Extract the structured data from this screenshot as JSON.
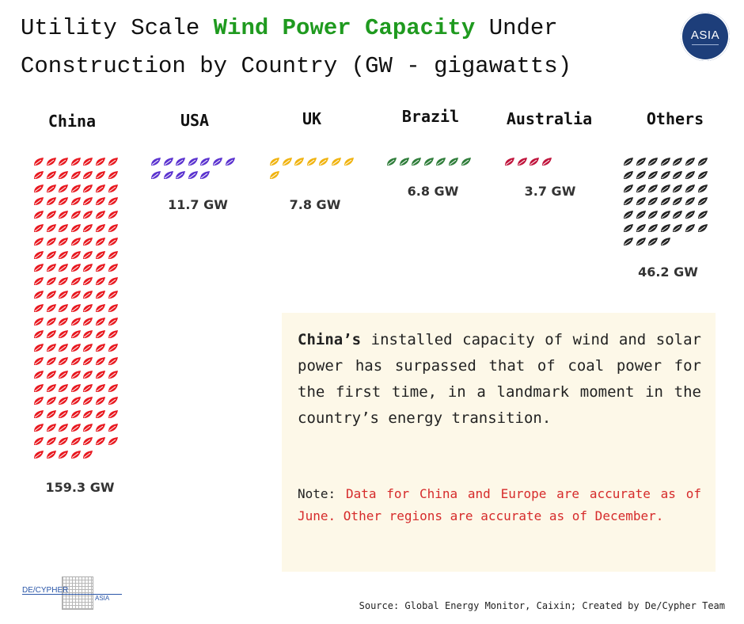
{
  "title": {
    "part1": "Utility Scale ",
    "highlight": "Wind Power Capacity",
    "part2": " Under Construction by Country (GW - gigawatts)"
  },
  "logo": {
    "text": "ASIA"
  },
  "chart_data": {
    "type": "pictogram",
    "unit": "GW",
    "per_icon_gw": 1.0,
    "categories": [
      "China",
      "USA",
      "UK",
      "Brazil",
      "Australia",
      "Others"
    ],
    "values": [
      159.3,
      11.7,
      7.8,
      6.8,
      3.7,
      46.2
    ],
    "value_labels": [
      "159.3 GW",
      "11.7 GW",
      "7.8 GW",
      "6.8 GW",
      "3.7 GW",
      "46.2 GW"
    ],
    "colors": [
      "#e8181f",
      "#5b33cf",
      "#f0b310",
      "#2f7d3a",
      "#c0143c",
      "#222222"
    ]
  },
  "note": {
    "lead": "China’s",
    "body": " installed capacity of wind and solar power has surpassed that of coal power for the first time, in a landmark moment in the country’s energy transition.",
    "label": "Note:",
    "text": " Data for China and Europe  are accurate as of June. Other regions are accurate as of December."
  },
  "footer": {
    "brand_left": "DE/CYPHER",
    "brand_right": "ASIA",
    "source": "Source: Global Energy Monitor, Caixin; Created by De/Cypher Team"
  }
}
